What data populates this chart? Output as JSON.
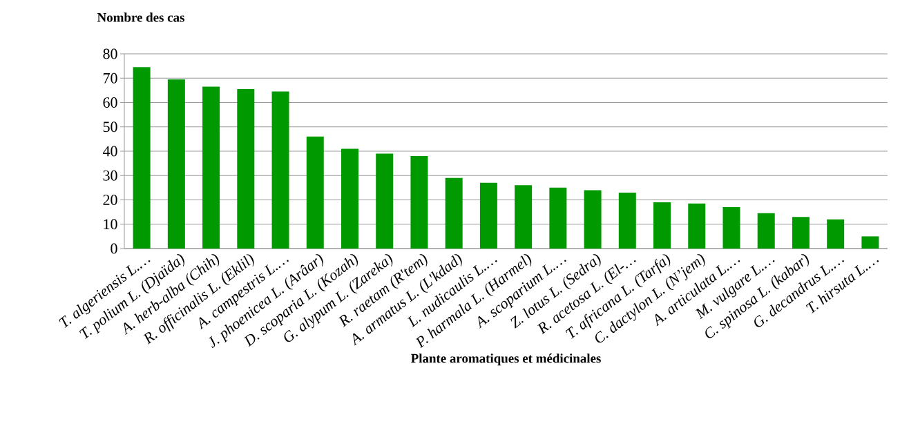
{
  "chart_data": {
    "type": "bar",
    "xlabel": "Plante aromatiques et médicinales",
    "ylabel": "Nombre des cas",
    "categories": [
      "T. algeriensis  L.…",
      "T. polium L. (Djaïda)",
      "A. herb-alba (Chih)",
      "R. officinalis L. (Eklil)",
      "A. campestris L.…",
      "J. phoenicea L. (Arâar)",
      "D. scoparia L. (Kozah)",
      "G. alypum L. (Zareka)",
      "R. raetam (R'tem)",
      "A. armatus L. (L'kdad)",
      "L. nudicaulis L.…",
      "P. harmala L. (Harmel)",
      "A. scoparium L.…",
      "Z. lotus L. (Sedra)",
      "R. acetosa L. (El-…",
      "T. africana L. (Tarfa)",
      "C. dactylon L. (N’jem)",
      "A. articulata L.…",
      "M. vulgare L.…",
      "C. spinosa L. (kabar)",
      "G. decandrus L.…",
      "T. hirsuta  L.…"
    ],
    "values": [
      74.5,
      69.5,
      66.5,
      65.5,
      64.5,
      46,
      41,
      39,
      38,
      29,
      27,
      26,
      25,
      24,
      23,
      19,
      18.5,
      17,
      14.5,
      13,
      12,
      5
    ],
    "color": "#009900",
    "ylim": [
      0,
      80
    ],
    "yticks": [
      0,
      10,
      20,
      30,
      40,
      50,
      60,
      70,
      80
    ],
    "grid": "y"
  }
}
